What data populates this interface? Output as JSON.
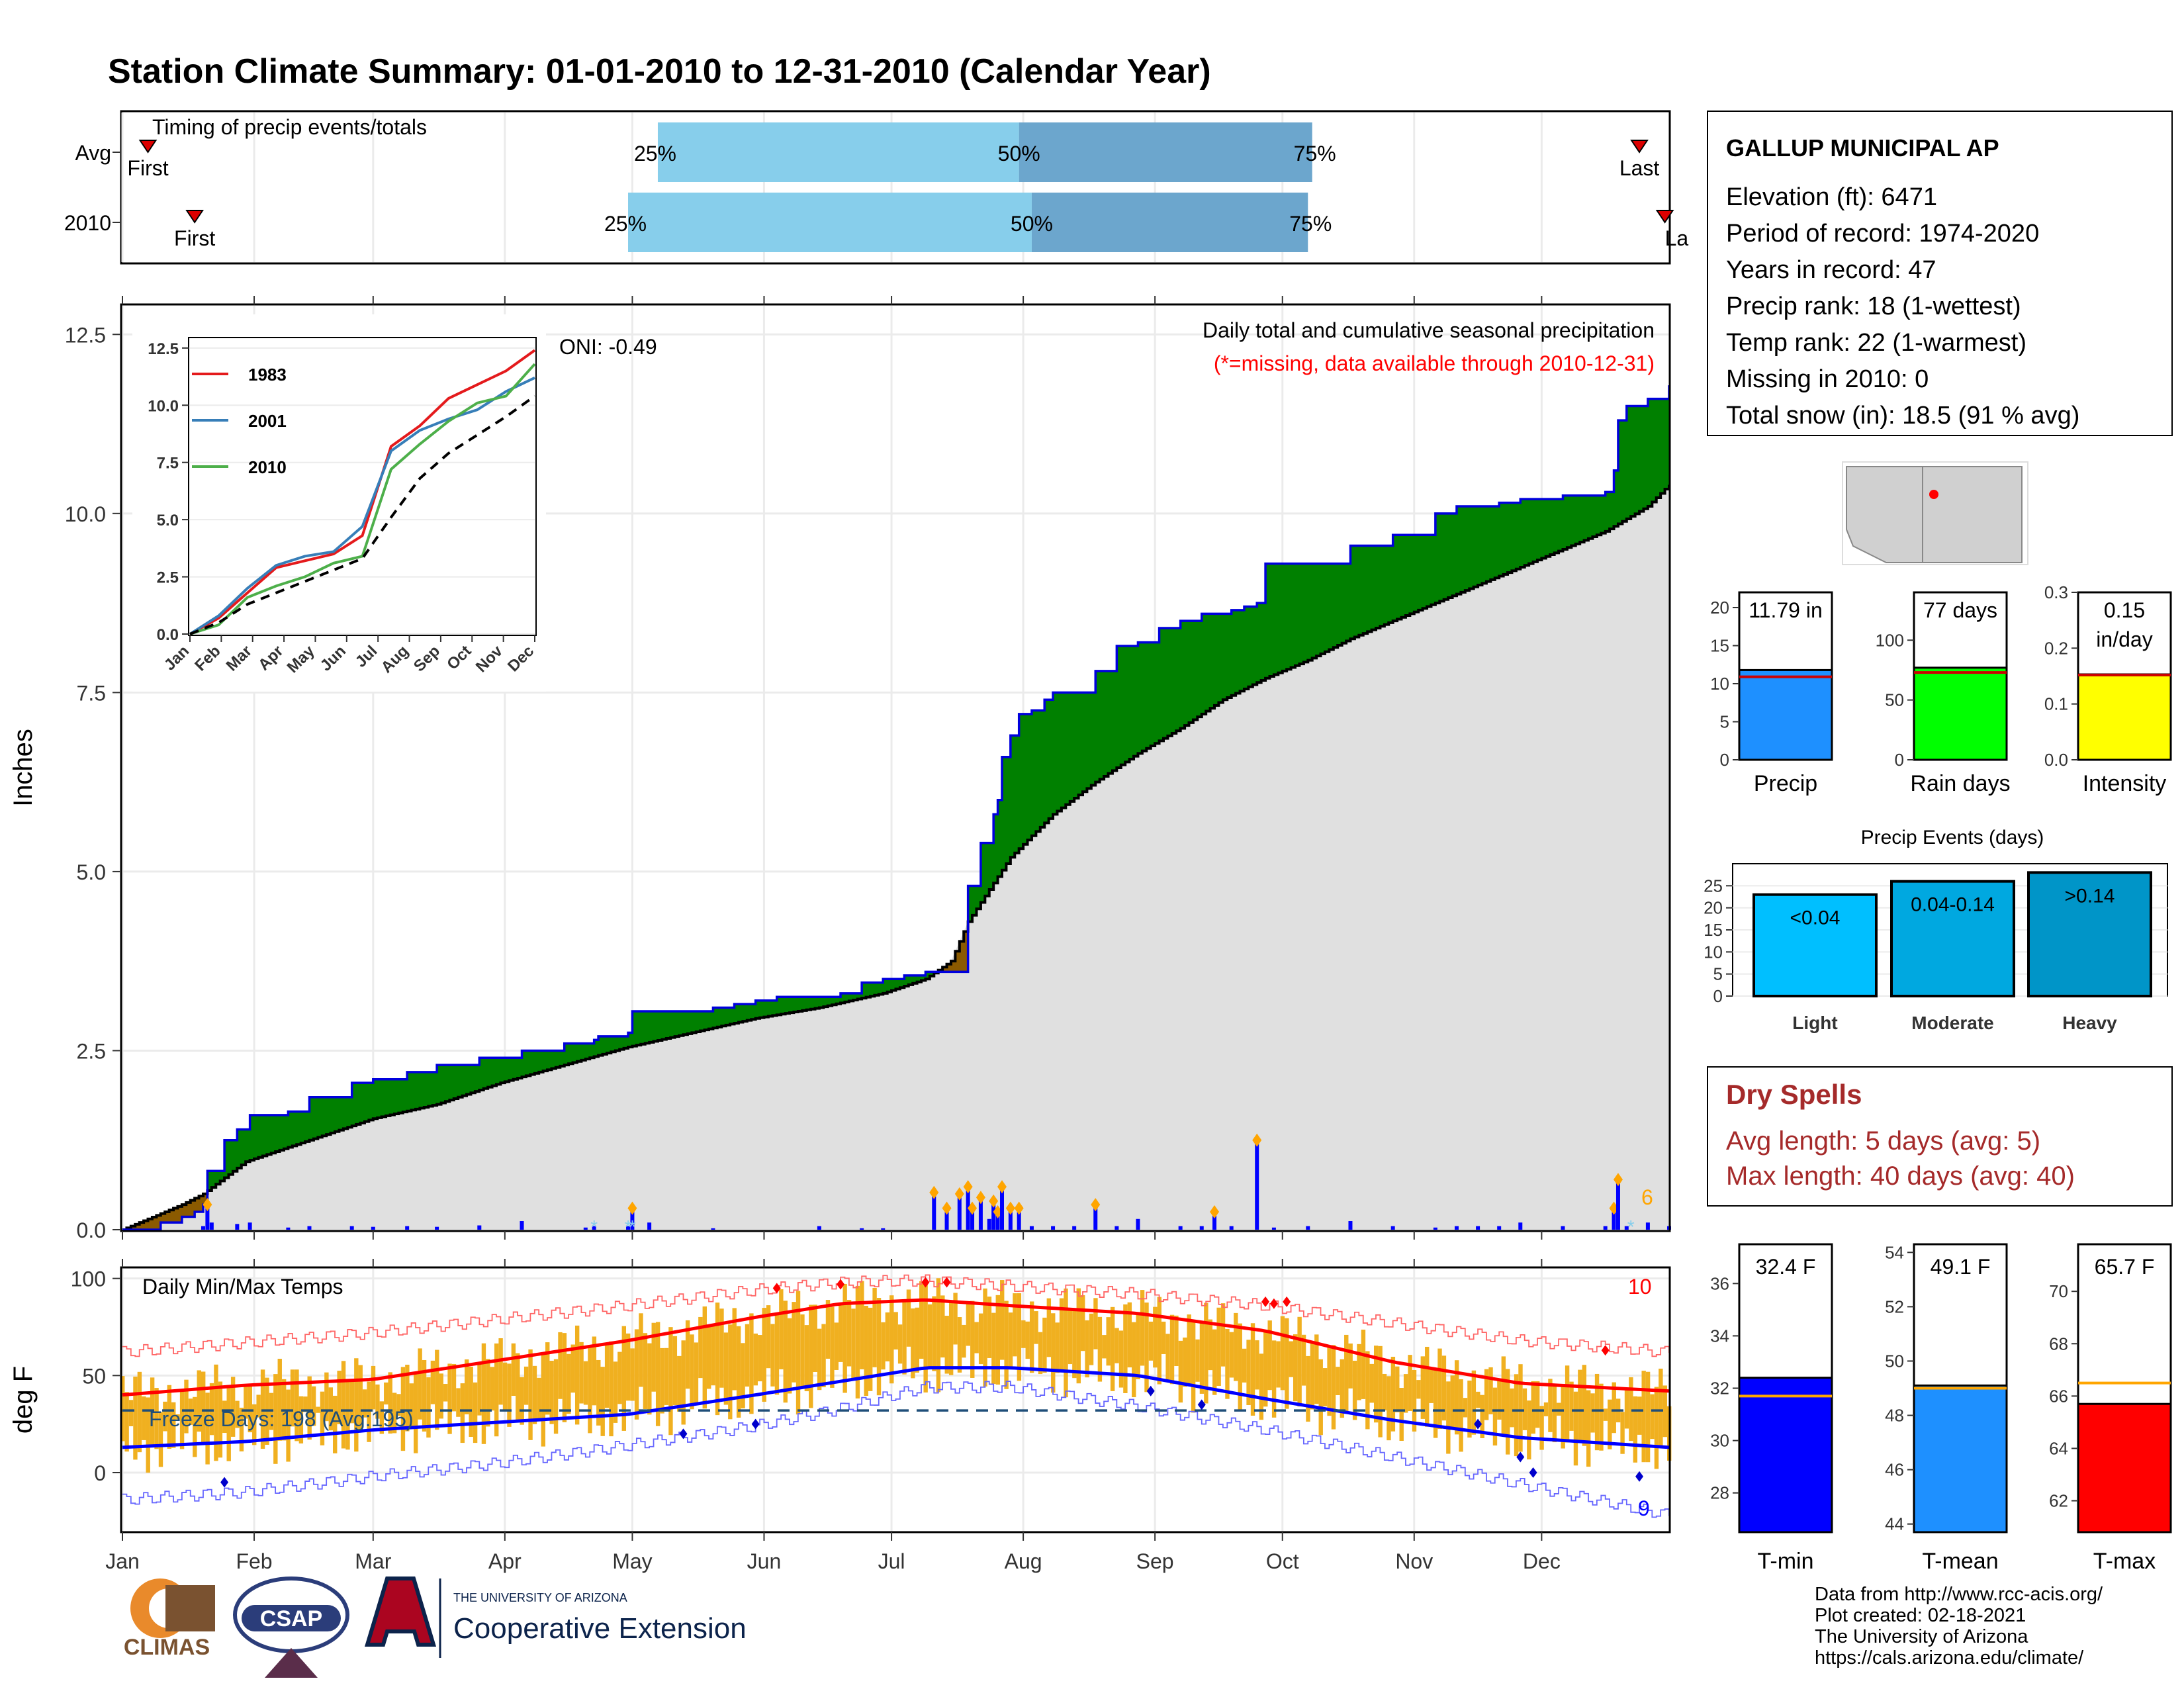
{
  "title": "Station Climate Summary: 01-01-2010 to 12-31-2010 (Calendar Year)",
  "months": [
    "Jan",
    "Feb",
    "Mar",
    "Apr",
    "May",
    "Jun",
    "Jul",
    "Aug",
    "Sep",
    "Oct",
    "Nov",
    "Dec"
  ],
  "colors": {
    "title": "#000080",
    "above_avg": "#008000",
    "below_avg": "#8B5A00",
    "climo_fill": "#E0E0E0",
    "daily_bars": "#0000FF",
    "high_marker": "#FFA500",
    "temp_bars": "#F0B020",
    "tmax_line": "#FF0000",
    "tmin_line": "#0000FF",
    "timing_light": "#87CEEB",
    "timing_dark": "#6CA6CD",
    "dry_spells_text": "#A52A2A"
  },
  "timing": {
    "title": "Timing of precip events/totals",
    "rows": [
      {
        "label": "Avg",
        "first_day": 7,
        "q25_day": 127,
        "q50_day": 212,
        "q75_day": 281,
        "last_day": 358,
        "first_label": "First",
        "last_label": "Last",
        "q25_label": "25%",
        "q50_label": "50%",
        "q75_label": "75%"
      },
      {
        "label": "2010",
        "first_day": 18,
        "q25_day": 120,
        "q50_day": 215,
        "q75_day": 280,
        "last_day": 364,
        "first_label": "First",
        "last_label": "Last",
        "q25_label": "25%",
        "q50_label": "50%",
        "q75_label": "75%"
      }
    ]
  },
  "precip": {
    "ylabel": "Inches",
    "oni_label": "ONI: -0.49",
    "heading": "Daily total and cumulative seasonal precipitation",
    "missing_note": "(*=missing, data available through 2010-12-31)",
    "corner_count": "6",
    "yticks": [
      "0.0",
      "2.5",
      "5.0",
      "7.5",
      "10.0",
      "12.5"
    ]
  },
  "inset": {
    "legend": [
      "1983",
      "2001",
      "2010"
    ],
    "legend_colors": [
      "#E41A1C",
      "#377EB8",
      "#4DAF4A"
    ],
    "yticks": [
      "0.0",
      "2.5",
      "5.0",
      "7.5",
      "10.0",
      "12.5"
    ],
    "xticks": [
      "Jan",
      "Feb",
      "Mar",
      "Apr",
      "May",
      "Jun",
      "Jul",
      "Aug",
      "Sep",
      "Oct",
      "Nov",
      "Dec"
    ]
  },
  "temps": {
    "ylabel": "deg F",
    "title": "Daily Min/Max Temps",
    "freeze_label": "Freeze Days: 198 (Avg:195)",
    "record_high_count": "10",
    "record_low_count": "9",
    "yticks": [
      "0",
      "50",
      "100"
    ]
  },
  "station": {
    "name": "GALLUP MUNICIPAL AP",
    "lines": [
      "Elevation (ft): 6471",
      "Period of record: 1974-2020",
      "Years in record: 47",
      "Precip rank: 18 (1-wettest)",
      "Temp rank: 22 (1-warmest)",
      "Missing in 2010: 0",
      "Total snow (in): 18.5 (91 % avg)"
    ]
  },
  "summary_bars": [
    {
      "label": "Precip",
      "value_text": "11.79 in",
      "value": 11.79,
      "avg": 10.9,
      "max": 22,
      "ticks": [
        "0",
        "5",
        "10",
        "15",
        "20"
      ],
      "tick_values": [
        0,
        5,
        10,
        15,
        20
      ],
      "color": "#1E90FF",
      "avg_color": "#CC0000"
    },
    {
      "label": "Rain days",
      "value_text": "77 days",
      "value": 77,
      "avg": 73,
      "max": 140,
      "ticks": [
        "0",
        "50",
        "100"
      ],
      "tick_values": [
        0,
        50,
        100
      ],
      "color": "#00FF00",
      "avg_color": "#CC0000"
    },
    {
      "label": "Intensity",
      "value_text": "0.15",
      "value_text2": "in/day",
      "value": 0.153,
      "avg": 0.152,
      "max": 0.3,
      "ticks": [
        "0.0",
        "0.1",
        "0.2",
        "0.3"
      ],
      "tick_values": [
        0,
        0.1,
        0.2,
        0.3
      ],
      "color": "#FFFF00",
      "avg_color": "#CC0000"
    }
  ],
  "events": {
    "title": "Precip Events (days)",
    "ticks": [
      "0",
      "5",
      "10",
      "15",
      "20",
      "25"
    ],
    "bars": [
      {
        "label": "Light",
        "value_text": "<0.04",
        "value": 23,
        "color": "#00BFFF"
      },
      {
        "label": "Moderate",
        "value_text": "0.04-0.14",
        "value": 26,
        "color": "#00A8E0"
      },
      {
        "label": "Heavy",
        "value_text": ">0.14",
        "value": 28,
        "color": "#0095C8"
      }
    ]
  },
  "dry_spells": {
    "title": "Dry Spells",
    "avg_line": "Avg length: 5 days (avg: 5)",
    "max_line": "Max length: 40 days (avg: 40)"
  },
  "temp_bars": [
    {
      "label": "T-min",
      "value_text": "32.4 F",
      "value": 32.4,
      "avg": 31.7,
      "min": 26.5,
      "max": 37.5,
      "ticks": [
        "28",
        "30",
        "32",
        "34",
        "36"
      ],
      "tick_values": [
        28,
        30,
        32,
        34,
        36
      ],
      "color": "#0000FF"
    },
    {
      "label": "T-mean",
      "value_text": "49.1 F",
      "value": 49.1,
      "avg": 49.0,
      "min": 43.7,
      "max": 54.3,
      "ticks": [
        "44",
        "46",
        "48",
        "50",
        "52",
        "54"
      ],
      "tick_values": [
        44,
        46,
        48,
        50,
        52,
        54
      ],
      "color": "#1E90FF"
    },
    {
      "label": "T-max",
      "value_text": "65.7 F",
      "value": 65.7,
      "avg": 66.5,
      "min": 60.8,
      "max": 71.8,
      "ticks": [
        "62",
        "64",
        "66",
        "68",
        "70"
      ],
      "tick_values": [
        62,
        64,
        66,
        68,
        70
      ],
      "color": "#FF0000"
    }
  ],
  "footer": {
    "lines": [
      "Data from http://www.rcc-acis.org/",
      "Plot created: 02-18-2021",
      "The University of Arizona",
      "https://cals.arizona.edu/climate/"
    ],
    "logo_climas": "CLIMAS",
    "logo_csap": "CSAP",
    "ua_small": "THE UNIVERSITY OF ARIZONA",
    "ua_big": "Cooperative Extension"
  },
  "chart_data": [
    {
      "type": "area",
      "title": "Daily total and cumulative seasonal precipitation",
      "ylabel": "Inches",
      "ylim": [
        0,
        12.9
      ],
      "x_unit": "day of year",
      "xlim": [
        1,
        365
      ],
      "series": [
        {
          "name": "2010",
          "x": [
            1,
            10,
            15,
            18,
            20,
            21,
            25,
            28,
            31,
            40,
            45,
            55,
            60,
            68,
            75,
            85,
            95,
            105,
            112,
            113,
            120,
            121,
            125,
            130,
            135,
            140,
            145,
            150,
            155,
            160,
            165,
            170,
            175,
            180,
            185,
            190,
            195,
            198,
            200,
            203,
            205,
            206,
            207,
            208,
            210,
            212,
            215,
            218,
            220,
            222,
            225,
            230,
            235,
            240,
            245,
            250,
            255,
            258,
            260,
            262,
            265,
            268,
            270,
            275,
            280,
            290,
            300,
            310,
            315,
            320,
            325,
            330,
            340,
            350,
            352,
            353,
            355,
            360,
            365
          ],
          "y": [
            0,
            0.1,
            0.18,
            0.25,
            0.35,
            0.82,
            1.25,
            1.4,
            1.6,
            1.65,
            1.85,
            2.05,
            2.1,
            2.2,
            2.3,
            2.4,
            2.5,
            2.6,
            2.65,
            2.7,
            2.75,
            3.05,
            3.05,
            3.05,
            3.05,
            3.1,
            3.15,
            3.2,
            3.25,
            3.25,
            3.25,
            3.3,
            3.45,
            3.5,
            3.55,
            3.6,
            3.6,
            3.6,
            4.8,
            5.4,
            5.4,
            5.8,
            6.0,
            6.6,
            6.9,
            7.2,
            7.25,
            7.4,
            7.5,
            7.5,
            7.5,
            7.8,
            8.15,
            8.2,
            8.4,
            8.5,
            8.6,
            8.6,
            8.6,
            8.65,
            8.7,
            8.75,
            9.3,
            9.3,
            9.3,
            9.55,
            9.7,
            10.0,
            10.1,
            10.1,
            10.15,
            10.2,
            10.25,
            10.3,
            10.6,
            11.3,
            11.5,
            11.6,
            11.79
          ]
        },
        {
          "name": "Avg",
          "x": [
            1,
            15,
            20,
            30,
            45,
            60,
            75,
            90,
            105,
            120,
            135,
            150,
            165,
            180,
            190,
            196,
            200,
            205,
            210,
            220,
            230,
            240,
            250,
            260,
            270,
            280,
            290,
            300,
            310,
            320,
            330,
            340,
            350,
            360,
            365
          ],
          "y": [
            0,
            0.35,
            0.5,
            0.95,
            1.25,
            1.55,
            1.75,
            2.05,
            2.3,
            2.55,
            2.75,
            2.95,
            3.1,
            3.3,
            3.5,
            3.75,
            4.3,
            4.75,
            5.2,
            5.8,
            6.25,
            6.65,
            7.0,
            7.4,
            7.7,
            7.95,
            8.25,
            8.5,
            8.75,
            9.0,
            9.25,
            9.5,
            9.75,
            10.1,
            10.4
          ]
        }
      ],
      "daily_totals": {
        "x": [
          20,
          21,
          22,
          28,
          31,
          40,
          45,
          55,
          60,
          68,
          75,
          85,
          95,
          110,
          112,
          120,
          121,
          125,
          140,
          165,
          175,
          180,
          192,
          195,
          198,
          200,
          201,
          203,
          205,
          206,
          207,
          208,
          210,
          212,
          215,
          220,
          225,
          230,
          235,
          240,
          250,
          255,
          258,
          262,
          268,
          272,
          280,
          290,
          300,
          310,
          315,
          320,
          325,
          330,
          340,
          350,
          352,
          353,
          355,
          360,
          365
        ],
        "y": [
          0.05,
          0.35,
          0.1,
          0.08,
          0.1,
          0.03,
          0.05,
          0.05,
          0.04,
          0.05,
          0.04,
          0.06,
          0.12,
          0.03,
          0.05,
          0.05,
          0.3,
          0.1,
          0.02,
          0.05,
          0.02,
          0.02,
          0.52,
          0.3,
          0.5,
          0.6,
          0.3,
          0.45,
          0.15,
          0.4,
          0.25,
          0.6,
          0.3,
          0.3,
          0.05,
          0.05,
          0.05,
          0.35,
          0.05,
          0.15,
          0.05,
          0.05,
          0.25,
          0.05,
          1.25,
          0.03,
          0.05,
          0.12,
          0.05,
          0.03,
          0.05,
          0.05,
          0.05,
          0.1,
          0.05,
          0.05,
          0.3,
          0.7,
          0.05,
          0.1,
          0.05
        ]
      }
    },
    {
      "type": "line",
      "title": "",
      "xlabel": "",
      "ylim": [
        0,
        12.9
      ],
      "x": [
        "Jan",
        "Feb",
        "Mar",
        "Apr",
        "May",
        "Jun",
        "Jul",
        "Aug",
        "Sep",
        "Oct",
        "Nov",
        "Dec"
      ],
      "series": [
        {
          "name": "1983",
          "values": [
            0.7,
            1.8,
            2.9,
            3.2,
            3.5,
            4.3,
            8.2,
            9.1,
            10.3,
            10.9,
            11.5,
            12.4
          ]
        },
        {
          "name": "2001",
          "values": [
            0.8,
            2.0,
            3.0,
            3.4,
            3.6,
            4.7,
            8.0,
            8.9,
            9.4,
            9.8,
            10.6,
            11.2
          ]
        },
        {
          "name": "2010",
          "values": [
            0.4,
            1.6,
            2.1,
            2.5,
            3.1,
            3.4,
            7.2,
            8.3,
            9.3,
            10.1,
            10.4,
            11.8
          ]
        },
        {
          "name": "Avg",
          "values": [
            0.5,
            1.3,
            1.8,
            2.3,
            2.8,
            3.3,
            5.1,
            6.8,
            7.9,
            8.7,
            9.5,
            10.4
          ]
        }
      ]
    },
    {
      "type": "line",
      "title": "Daily Min/Max Temps",
      "ylabel": "deg F",
      "ylim": [
        -30,
        105
      ],
      "x_unit": "day of year",
      "series": [
        {
          "name": "avg max",
          "x": [
            1,
            30,
            60,
            90,
            120,
            150,
            170,
            190,
            210,
            240,
            270,
            300,
            330,
            365
          ],
          "y": [
            40,
            45,
            48,
            58,
            68,
            80,
            87,
            89,
            86,
            82,
            73,
            57,
            46,
            42
          ]
        },
        {
          "name": "avg min",
          "x": [
            1,
            30,
            60,
            90,
            120,
            150,
            170,
            190,
            210,
            240,
            270,
            300,
            330,
            365
          ],
          "y": [
            13,
            16,
            22,
            26,
            30,
            40,
            47,
            54,
            54,
            50,
            38,
            27,
            18,
            13
          ]
        },
        {
          "name": "record high",
          "x": [
            1,
            30,
            60,
            90,
            120,
            150,
            170,
            190,
            210,
            240,
            270,
            300,
            330,
            365
          ],
          "y": [
            62,
            67,
            72,
            79,
            86,
            94,
            98,
            99,
            96,
            92,
            86,
            77,
            68,
            62
          ]
        },
        {
          "name": "record low",
          "x": [
            1,
            30,
            60,
            90,
            120,
            150,
            170,
            190,
            210,
            240,
            270,
            300,
            330,
            365
          ],
          "y": [
            -14,
            -10,
            -2,
            5,
            14,
            24,
            33,
            44,
            44,
            34,
            22,
            8,
            -6,
            -22
          ]
        }
      ],
      "freeze_line": 32
    }
  ]
}
